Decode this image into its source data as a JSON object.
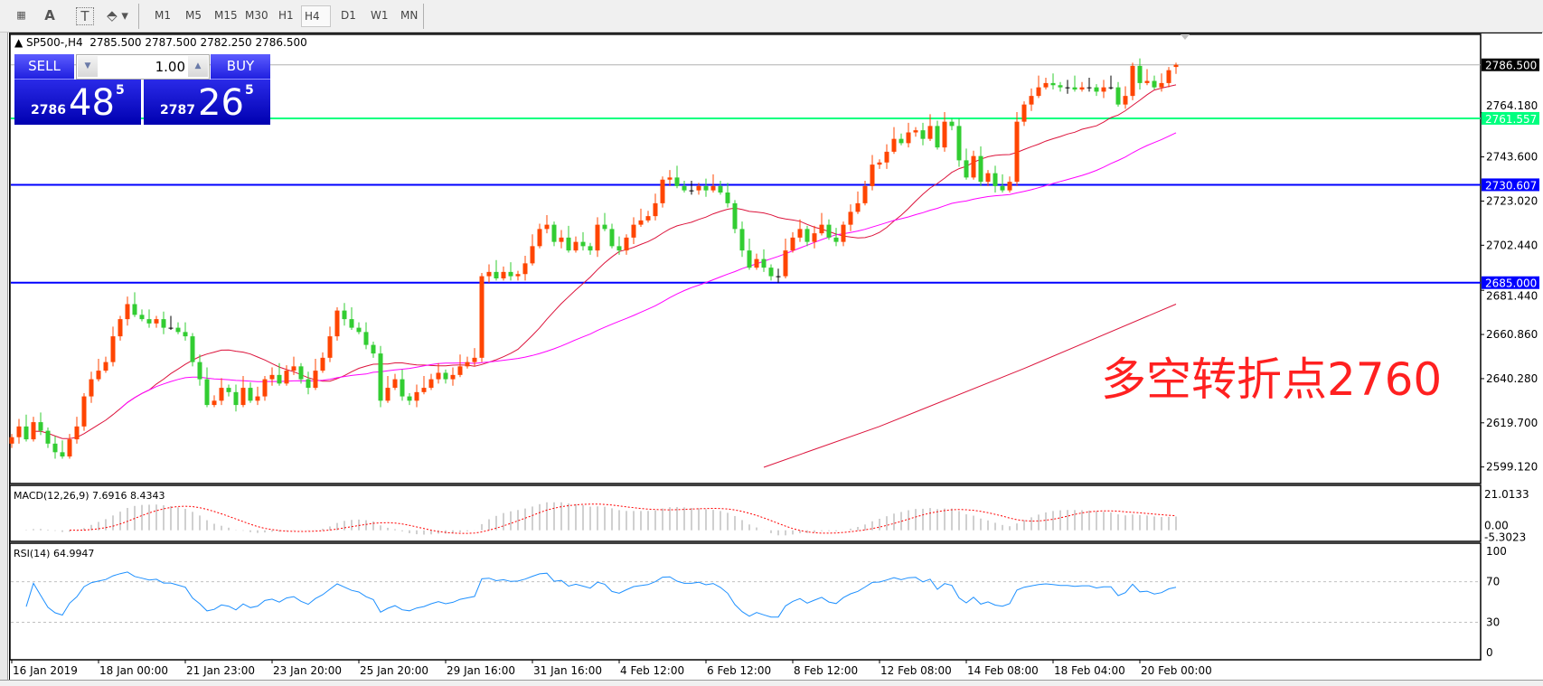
{
  "toolbar": {
    "tools": [
      {
        "icon": "grid-f-icon"
      },
      {
        "icon": "text-icon",
        "glyph": "A"
      },
      {
        "icon": "text-label-icon",
        "glyph": "T"
      },
      {
        "icon": "arrows-icon",
        "glyph": "⬘"
      }
    ],
    "timeframes": [
      "M1",
      "M5",
      "M15",
      "M30",
      "H1",
      "H4",
      "D1",
      "W1",
      "MN"
    ],
    "selected_timeframe": "H4"
  },
  "chart_header": {
    "symbol": "SP500-,H4",
    "open": "2785.500",
    "high": "2787.500",
    "low": "2782.250",
    "close": "2786.500"
  },
  "trade_panel": {
    "sell_label": "SELL",
    "buy_label": "BUY",
    "lot": "1.00",
    "sell_price": {
      "prefix": "2786",
      "big": "48",
      "sup": "5"
    },
    "buy_price": {
      "prefix": "2787",
      "big": "26",
      "sup": "5"
    }
  },
  "annotation": "多空转折点2760",
  "colors": {
    "bull": "#ff4500",
    "bear": "#32cd32",
    "ma_fast": "#dc143c",
    "ma_mid": "#ff00ff",
    "support_blue": "#0000ff",
    "pivot_green": "#00ff7f",
    "rsi": "#1e90ff",
    "macd_hist": "#c0c0c0",
    "macd_signal": "#ff0000"
  },
  "chart_data": {
    "type": "candlestick",
    "symbol": "SP500-",
    "timeframe": "H4",
    "ylim": [
      2591.4,
      2800.7
    ],
    "y_ticks": [
      "2764.180",
      "2743.600",
      "2723.020",
      "2702.440",
      "2681.440",
      "2660.860",
      "2640.280",
      "2619.700",
      "2599.120"
    ],
    "y_tick_values": [
      2764.18,
      2743.6,
      2723.02,
      2702.44,
      2681.44,
      2660.86,
      2640.28,
      2619.7,
      2599.12
    ],
    "x_ticks": [
      "16 Jan 2019",
      "18 Jan 00:00",
      "21 Jan 23:00",
      "23 Jan 20:00",
      "25 Jan 20:00",
      "29 Jan 16:00",
      "31 Jan 16:00",
      "4 Feb 12:00",
      "6 Feb 12:00",
      "8 Feb 12:00",
      "12 Feb 08:00",
      "14 Feb 08:00",
      "18 Feb 04:00",
      "20 Feb 00:00"
    ],
    "close": [
      2613,
      2618,
      2612,
      2620,
      2616,
      2610,
      2606,
      2604,
      2612,
      2618,
      2632,
      2640,
      2644,
      2648,
      2660,
      2668,
      2675,
      2670,
      2668,
      2666,
      2668,
      2664,
      2664,
      2662,
      2660,
      2648,
      2640,
      2628,
      2630,
      2636,
      2634,
      2628,
      2636,
      2630,
      2632,
      2640,
      2642,
      2638,
      2644,
      2646,
      2640,
      2636,
      2644,
      2650,
      2660,
      2672,
      2668,
      2664,
      2662,
      2656,
      2652,
      2630,
      2636,
      2640,
      2632,
      2630,
      2634,
      2636,
      2640,
      2643,
      2640,
      2642,
      2646,
      2648,
      2650,
      2688,
      2690,
      2687,
      2690,
      2688,
      2689,
      2694,
      2702,
      2710,
      2712,
      2704,
      2706,
      2700,
      2704,
      2702,
      2700,
      2712,
      2710,
      2702,
      2700,
      2706,
      2712,
      2714,
      2716,
      2722,
      2733,
      2734,
      2730,
      2728,
      2728,
      2730,
      2728,
      2730,
      2727,
      2722,
      2710,
      2700,
      2692,
      2696,
      2692,
      2688,
      2688,
      2700,
      2706,
      2710,
      2704,
      2708,
      2712,
      2706,
      2704,
      2712,
      2718,
      2722,
      2730,
      2740,
      2741,
      2746,
      2752,
      2750,
      2755,
      2756,
      2752,
      2758,
      2748,
      2760,
      2758,
      2742,
      2734,
      2744,
      2732,
      2736,
      2730,
      2728,
      2732,
      2760,
      2768,
      2772,
      2776,
      2778,
      2777,
      2776,
      2776,
      2775,
      2776,
      2776,
      2774,
      2776,
      2776,
      2768,
      2772,
      2786,
      2778,
      2779,
      2776,
      2778,
      2784,
      2786.5
    ],
    "last_bar": {
      "open": 2785.5,
      "high": 2787.5,
      "low": 2782.25,
      "close": 2786.5
    },
    "ma_long": [
      [
        104,
        2599
      ],
      [
        120,
        2618
      ],
      [
        140,
        2645
      ],
      [
        161,
        2675
      ]
    ],
    "hlines": [
      {
        "label": "2786.500",
        "value": 2786.5,
        "kind": "bid"
      },
      {
        "label": "2761.557",
        "value": 2761.557,
        "kind": "pivot"
      },
      {
        "label": "2730.607",
        "value": 2730.607,
        "kind": "support"
      },
      {
        "label": "2685.000",
        "value": 2685.0,
        "kind": "support"
      }
    ],
    "macd": {
      "label": "MACD(12,26,9) 7.6916 8.4343",
      "ylim": [
        -6.5,
        26.3
      ],
      "ticks": [
        "21.0133",
        "0.00",
        "-5.3023"
      ],
      "tick_values": [
        21.0133,
        0,
        -5.3023
      ]
    },
    "rsi": {
      "label": "RSI(14) 64.9947",
      "ylim": [
        -7,
        108
      ],
      "levels": [
        30,
        70
      ],
      "ticks": [
        "100",
        "70",
        "30",
        "0"
      ],
      "tick_values": [
        100,
        70,
        30,
        0
      ]
    }
  }
}
